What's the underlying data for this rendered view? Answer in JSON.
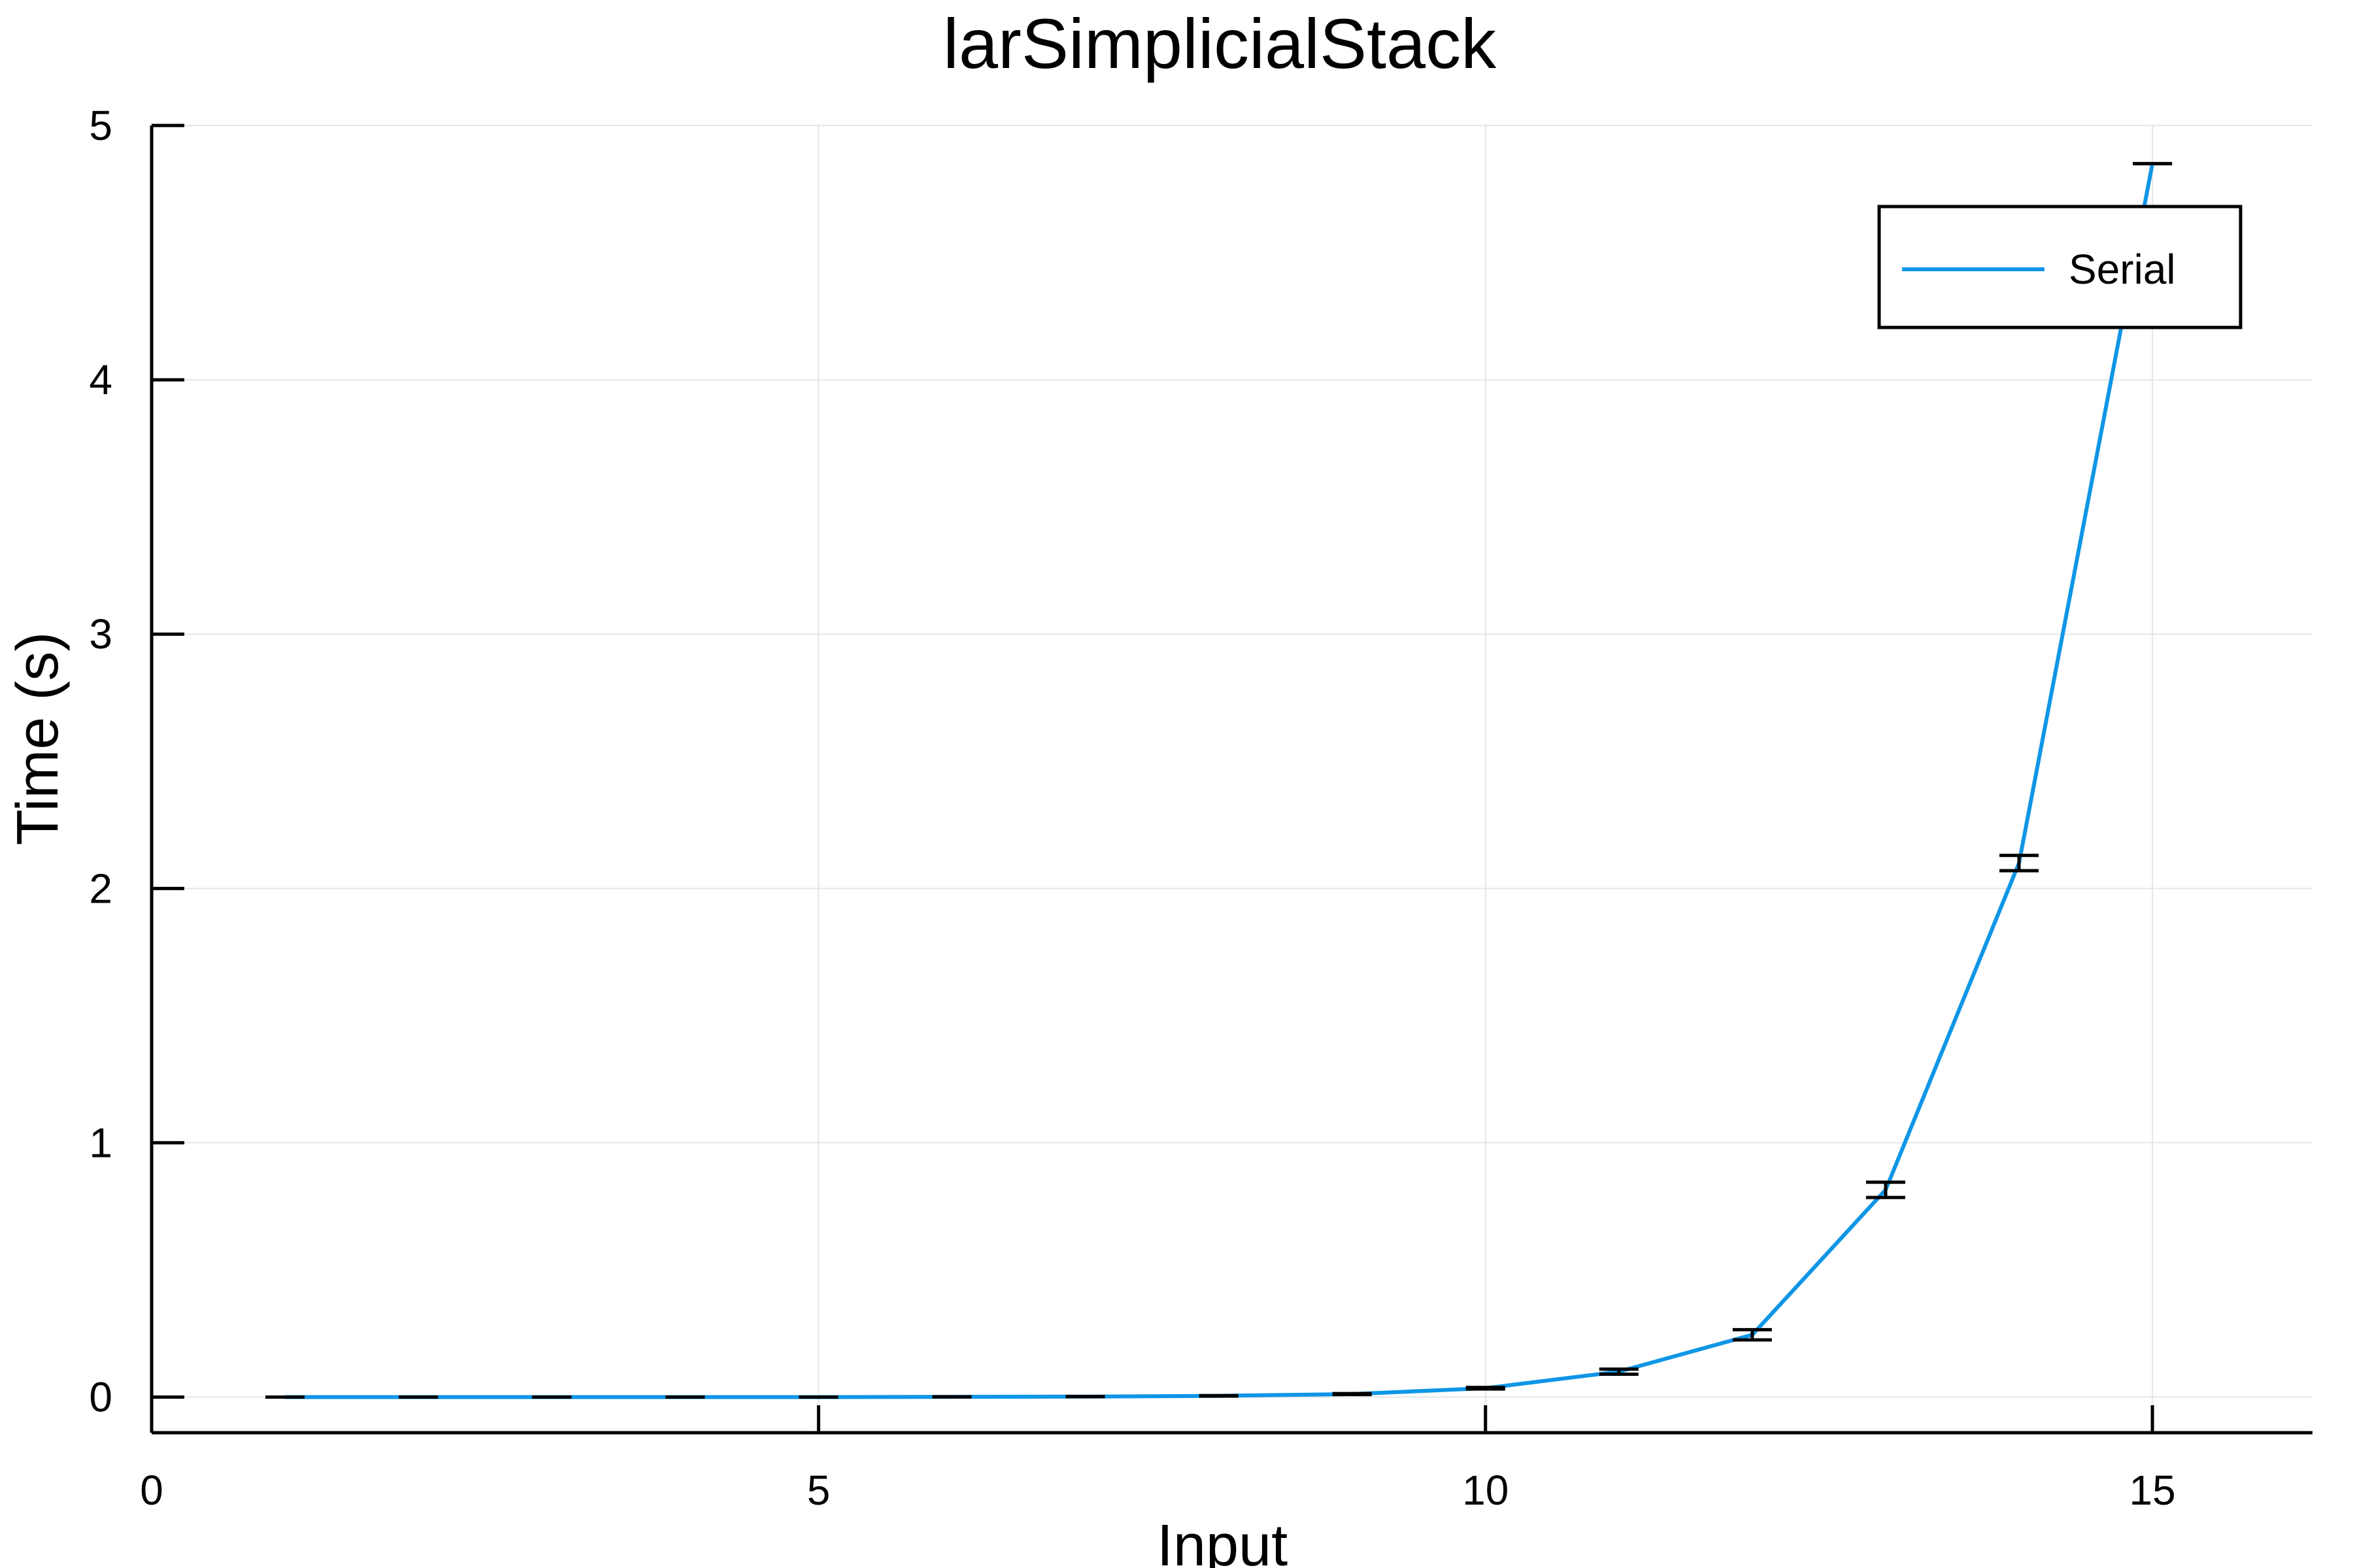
{
  "chart_data": {
    "type": "line",
    "title": "larSimplicialStack",
    "xlabel": "Input",
    "ylabel": "Time (s)",
    "xlim": [
      0,
      16.2
    ],
    "ylim": [
      -0.14,
      5.0
    ],
    "xticks": [
      0,
      5,
      10,
      15
    ],
    "yticks": [
      0,
      1,
      2,
      3,
      4,
      5
    ],
    "xtick_labels": [
      "0",
      "5",
      "10",
      "15"
    ],
    "ytick_labels": [
      "0",
      "1",
      "2",
      "3",
      "4",
      "5"
    ],
    "grid": true,
    "legend_position": "top-right",
    "series": [
      {
        "name": "Serial",
        "color": "#0f96e6",
        "x": [
          1,
          2,
          3,
          4,
          5,
          6,
          7,
          8,
          9,
          10,
          11,
          12,
          13,
          14,
          15
        ],
        "y": [
          0.0,
          0.0,
          0.0,
          0.0,
          0.0,
          0.001,
          0.002,
          0.005,
          0.012,
          0.035,
          0.1,
          0.245,
          0.815,
          2.1,
          4.85
        ],
        "error": [
          0.0,
          0.0,
          0.0,
          0.0,
          0.0,
          0.0,
          0.0,
          0.001,
          0.002,
          0.003,
          0.01,
          0.02,
          0.03,
          0.03,
          0.0
        ]
      }
    ]
  }
}
